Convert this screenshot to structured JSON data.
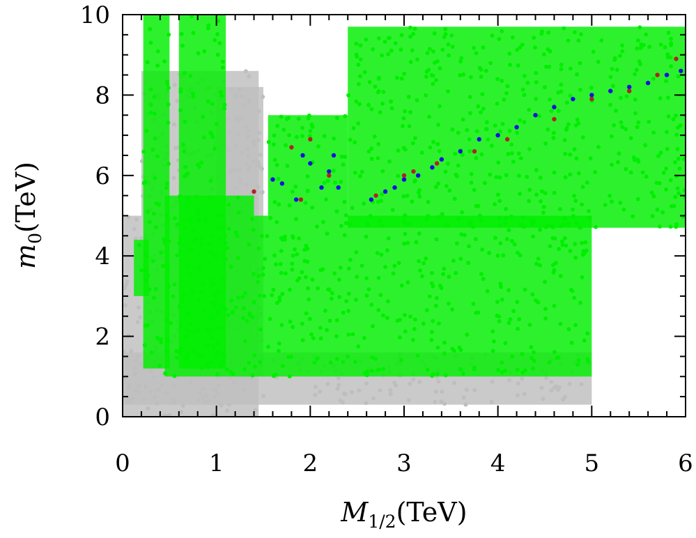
{
  "chart_data": {
    "type": "scatter",
    "title": "",
    "xlabel": {
      "symbol": "M",
      "subscript": "1/2",
      "unit": "(TeV)"
    },
    "ylabel": {
      "symbol": "m",
      "subscript": "0",
      "unit": "(TeV)"
    },
    "xlim": [
      0,
      6
    ],
    "ylim": [
      0,
      10
    ],
    "x_ticks": [
      0,
      1,
      2,
      3,
      4,
      5,
      6
    ],
    "y_ticks": [
      0,
      2,
      4,
      6,
      8,
      10
    ],
    "x_minor_step": 0.2,
    "y_minor_step": 0.5,
    "grid": false,
    "legend": "none",
    "colors": {
      "gray": "#bebebe",
      "green": "#00ee00",
      "blue": "#1010e0",
      "red": "#b22222",
      "axis": "#000000"
    },
    "series": [
      {
        "name": "gray",
        "color": "#bebebe",
        "regions": [
          {
            "x": [
              0.0,
              1.45
            ],
            "y": [
              0.0,
              5.0
            ]
          },
          {
            "x": [
              0.2,
              1.45
            ],
            "y": [
              5.0,
              8.6
            ]
          },
          {
            "x": [
              1.0,
              1.5
            ],
            "y": [
              1.0,
              8.2
            ]
          },
          {
            "x": [
              0.0,
              5.0
            ],
            "y": [
              0.3,
              1.6
            ]
          }
        ]
      },
      {
        "name": "green",
        "color": "#00ee00",
        "regions": [
          {
            "x": [
              0.22,
              0.5
            ],
            "y": [
              1.2,
              10.0
            ]
          },
          {
            "x": [
              0.6,
              1.1
            ],
            "y": [
              1.2,
              10.0
            ]
          },
          {
            "x": [
              0.12,
              0.28
            ],
            "y": [
              3.0,
              4.4
            ]
          },
          {
            "x": [
              0.45,
              1.4
            ],
            "y": [
              1.0,
              5.5
            ]
          },
          {
            "x": [
              1.4,
              5.0
            ],
            "y": [
              1.0,
              5.0
            ]
          },
          {
            "x": [
              1.55,
              2.4
            ],
            "y": [
              5.0,
              7.5
            ]
          },
          {
            "x": [
              2.4,
              6.0
            ],
            "y": [
              4.7,
              9.7
            ]
          }
        ]
      },
      {
        "name": "blue",
        "color": "#1010e0",
        "points": [
          [
            1.6,
            5.9
          ],
          [
            1.7,
            5.8
          ],
          [
            1.85,
            5.4
          ],
          [
            1.92,
            6.5
          ],
          [
            2.0,
            6.3
          ],
          [
            2.12,
            5.7
          ],
          [
            2.2,
            6.1
          ],
          [
            2.25,
            6.5
          ],
          [
            2.3,
            5.7
          ],
          [
            2.65,
            5.4
          ],
          [
            2.8,
            5.6
          ],
          [
            2.9,
            5.7
          ],
          [
            3.0,
            5.9
          ],
          [
            3.15,
            6.0
          ],
          [
            3.3,
            6.2
          ],
          [
            3.4,
            6.4
          ],
          [
            3.6,
            6.6
          ],
          [
            3.8,
            6.9
          ],
          [
            4.0,
            7.0
          ],
          [
            4.2,
            7.2
          ],
          [
            4.4,
            7.5
          ],
          [
            4.6,
            7.7
          ],
          [
            4.8,
            7.9
          ],
          [
            5.0,
            8.0
          ],
          [
            5.2,
            8.1
          ],
          [
            5.4,
            8.2
          ],
          [
            5.6,
            8.3
          ],
          [
            5.8,
            8.5
          ],
          [
            5.95,
            8.6
          ]
        ]
      },
      {
        "name": "red",
        "color": "#b22222",
        "points": [
          [
            1.4,
            5.6
          ],
          [
            1.8,
            6.7
          ],
          [
            1.9,
            5.4
          ],
          [
            2.0,
            6.9
          ],
          [
            2.2,
            6.0
          ],
          [
            2.7,
            5.5
          ],
          [
            3.0,
            6.0
          ],
          [
            3.1,
            6.1
          ],
          [
            3.35,
            6.3
          ],
          [
            3.75,
            6.6
          ],
          [
            4.1,
            6.9
          ],
          [
            4.6,
            7.4
          ],
          [
            5.0,
            7.9
          ],
          [
            5.4,
            8.1
          ],
          [
            5.7,
            8.5
          ],
          [
            5.9,
            8.9
          ]
        ]
      }
    ]
  }
}
